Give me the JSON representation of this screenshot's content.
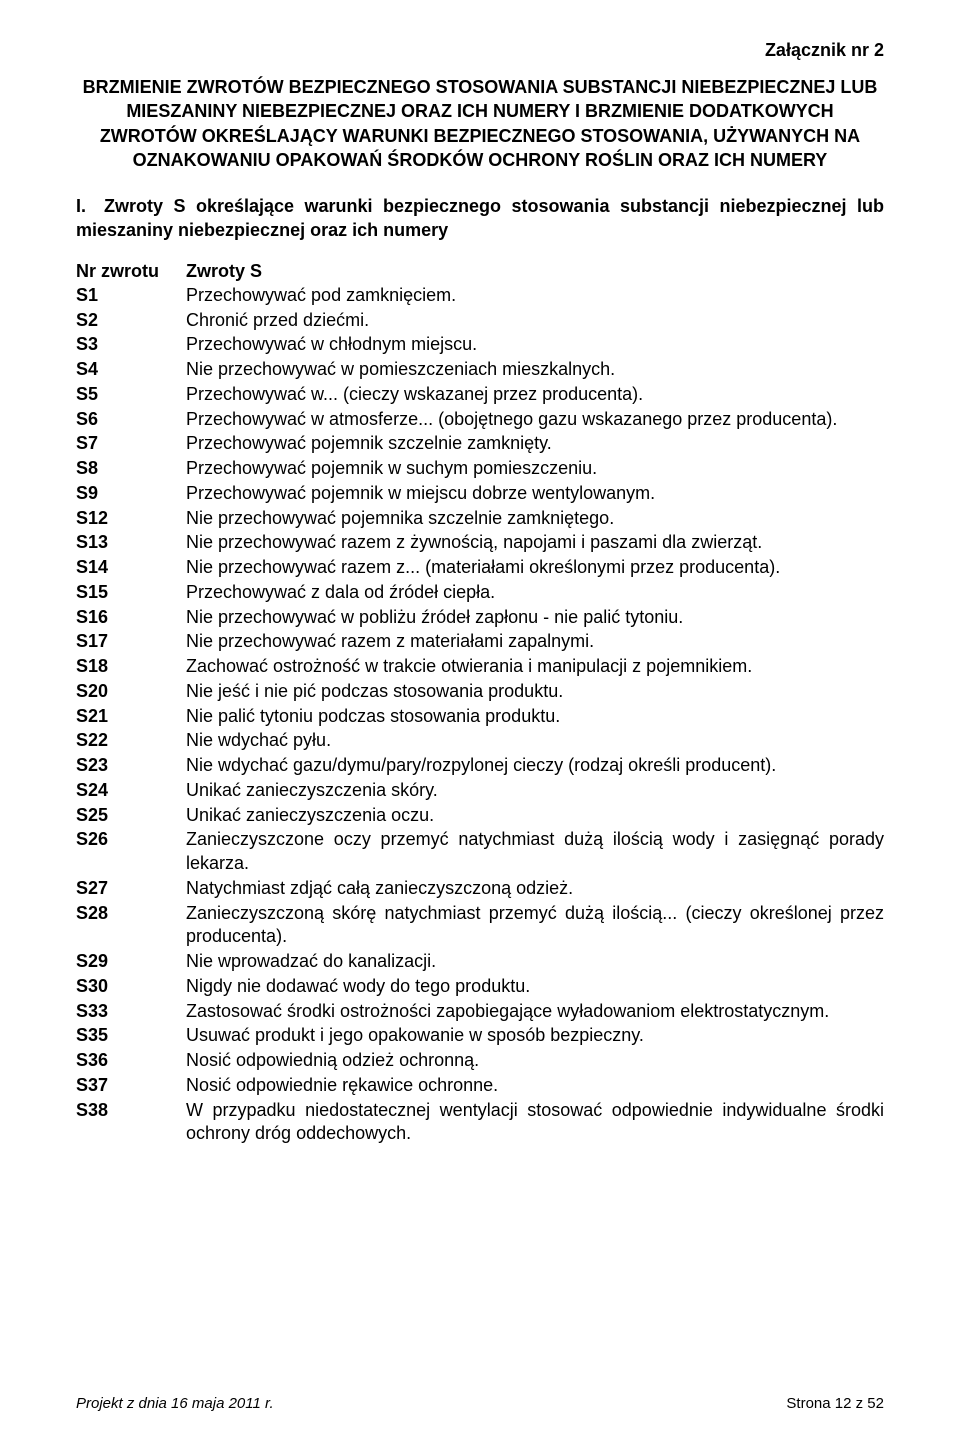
{
  "annex": "Załącznik nr 2",
  "heading": "BRZMIENIE ZWROTÓW BEZPIECZNEGO STOSOWANIA SUBSTANCJI NIEBEZPIECZNEJ LUB MIESZANINY NIEBEZPIECZNEJ ORAZ ICH NUMERY I BRZMIENIE DODATKOWYCH ZWROTÓW OKREŚLAJĄCY WARUNKI BEZPIECZNEGO STOSOWANIA, UŻYWANYCH NA OZNAKOWANIU OPAKOWAŃ ŚRODKÓW OCHRONY ROŚLIN ORAZ ICH NUMERY",
  "section_intro": "I. Zwroty S określające warunki bezpiecznego stosowania substancji niebezpiecznej lub mieszaniny niebezpiecznej oraz ich numery",
  "list_header_code": "Nr zwrotu",
  "list_header_desc": "Zwroty S",
  "rows": [
    {
      "code": "S1",
      "desc": "Przechowywać pod zamknięciem."
    },
    {
      "code": "S2",
      "desc": "Chronić przed dziećmi."
    },
    {
      "code": "S3",
      "desc": "Przechowywać w chłodnym miejscu."
    },
    {
      "code": "S4",
      "desc": "Nie przechowywać w pomieszczeniach mieszkalnych."
    },
    {
      "code": "S5",
      "desc": "Przechowywać w... (cieczy wskazanej przez producenta)."
    },
    {
      "code": "S6",
      "desc": "Przechowywać w atmosferze... (obojętnego gazu wskazanego przez producenta)."
    },
    {
      "code": "S7",
      "desc": "Przechowywać pojemnik szczelnie zamknięty."
    },
    {
      "code": "S8",
      "desc": "Przechowywać pojemnik w suchym pomieszczeniu."
    },
    {
      "code": "S9",
      "desc": "Przechowywać pojemnik w miejscu dobrze wentylowanym."
    },
    {
      "code": "S12",
      "desc": "Nie przechowywać pojemnika szczelnie zamkniętego."
    },
    {
      "code": "S13",
      "desc": "Nie przechowywać razem z żywnością, napojami i paszami dla zwierząt."
    },
    {
      "code": "S14",
      "desc": "Nie przechowywać razem z... (materiałami określonymi przez producenta)."
    },
    {
      "code": "S15",
      "desc": "Przechowywać z dala od źródeł ciepła."
    },
    {
      "code": "S16",
      "desc": "Nie przechowywać w pobliżu źródeł zapłonu - nie palić tytoniu."
    },
    {
      "code": "S17",
      "desc": "Nie przechowywać razem z materiałami zapalnymi."
    },
    {
      "code": "S18",
      "desc": "Zachować ostrożność w trakcie otwierania i manipulacji z pojemnikiem."
    },
    {
      "code": "S20",
      "desc": "Nie jeść i nie pić podczas stosowania produktu."
    },
    {
      "code": "S21",
      "desc": "Nie palić tytoniu podczas stosowania produktu."
    },
    {
      "code": "S22",
      "desc": "Nie wdychać pyłu."
    },
    {
      "code": "S23",
      "desc": "Nie wdychać gazu/dymu/pary/rozpylonej cieczy (rodzaj określi producent)."
    },
    {
      "code": "S24",
      "desc": "Unikać zanieczyszczenia skóry."
    },
    {
      "code": "S25",
      "desc": "Unikać zanieczyszczenia oczu."
    },
    {
      "code": "S26",
      "desc": "Zanieczyszczone oczy przemyć natychmiast dużą ilością wody i zasięgnąć porady lekarza."
    },
    {
      "code": "S27",
      "desc": "Natychmiast zdjąć całą zanieczyszczoną odzież."
    },
    {
      "code": "S28",
      "desc": "Zanieczyszczoną skórę natychmiast przemyć dużą ilością... (cieczy określonej przez producenta)."
    },
    {
      "code": "S29",
      "desc": "Nie wprowadzać do kanalizacji."
    },
    {
      "code": "S30",
      "desc": "Nigdy nie dodawać wody do tego produktu."
    },
    {
      "code": "S33",
      "desc": "Zastosować środki ostrożności zapobiegające wyładowaniom elektrostatycznym."
    },
    {
      "code": "S35",
      "desc": "Usuwać produkt i jego opakowanie w sposób bezpieczny."
    },
    {
      "code": "S36",
      "desc": "Nosić odpowiednią odzież ochronną."
    },
    {
      "code": "S37",
      "desc": "Nosić odpowiednie rękawice ochronne."
    },
    {
      "code": "S38",
      "desc": "W przypadku niedostatecznej wentylacji stosować odpowiednie indywidualne środki ochrony dróg oddechowych."
    }
  ],
  "footer_left": "Projekt z dnia 16 maja 2011 r.",
  "footer_right": "Strona 12 z 52"
}
